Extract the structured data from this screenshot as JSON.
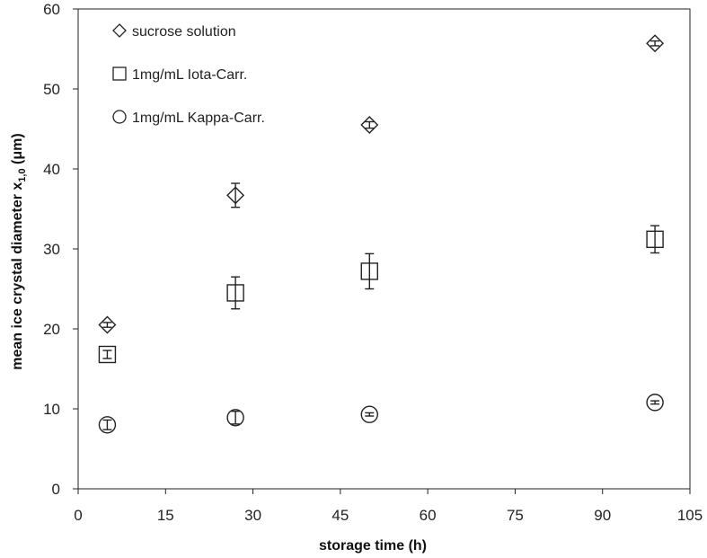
{
  "chart_data": {
    "type": "scatter",
    "title": "",
    "xlabel": "storage time  (h)",
    "ylabel_main": "mean ice crystal diameter x",
    "ylabel_sub": "1,0",
    "ylabel_unit": " (μm)",
    "xlim": [
      0,
      105
    ],
    "ylim": [
      0,
      60
    ],
    "xticks": [
      0,
      15,
      30,
      45,
      60,
      75,
      90,
      105
    ],
    "yticks": [
      0,
      10,
      20,
      30,
      40,
      50,
      60
    ],
    "grid": false,
    "legend_position": "top-left",
    "series": [
      {
        "name": "sucrose solution",
        "marker": "diamond",
        "points": [
          {
            "x": 5,
            "y": 20.5,
            "err": 0.3
          },
          {
            "x": 27,
            "y": 36.7,
            "err": 1.5
          },
          {
            "x": 50,
            "y": 45.5,
            "err": 0.4
          },
          {
            "x": 99,
            "y": 55.7,
            "err": 0.3
          }
        ]
      },
      {
        "name": "1mg/mL Iota-Carr.",
        "marker": "square",
        "points": [
          {
            "x": 5,
            "y": 16.8,
            "err": 0.5
          },
          {
            "x": 27,
            "y": 24.5,
            "err": 2.0
          },
          {
            "x": 50,
            "y": 27.2,
            "err": 2.2
          },
          {
            "x": 99,
            "y": 31.2,
            "err": 1.7
          }
        ]
      },
      {
        "name": "1mg/mL Kappa-Carr.",
        "marker": "circle",
        "points": [
          {
            "x": 5,
            "y": 8.0,
            "err": 0.6
          },
          {
            "x": 27,
            "y": 8.9,
            "err": 0.8
          },
          {
            "x": 50,
            "y": 9.3,
            "err": 0.2
          },
          {
            "x": 99,
            "y": 10.8,
            "err": 0.2
          }
        ]
      }
    ]
  }
}
